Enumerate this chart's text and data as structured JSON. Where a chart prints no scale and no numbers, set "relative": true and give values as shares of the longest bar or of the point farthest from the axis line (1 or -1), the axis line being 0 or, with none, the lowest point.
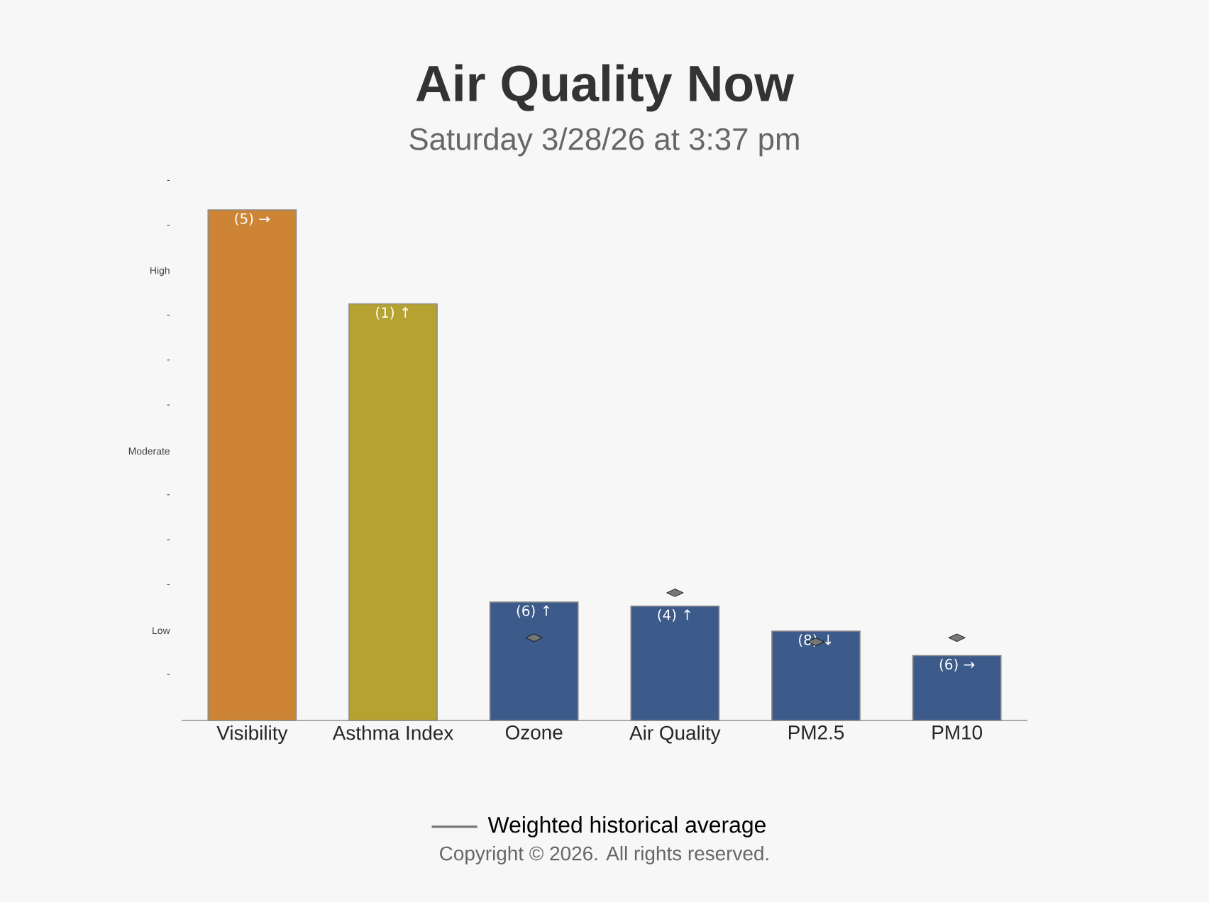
{
  "chart_data": {
    "type": "bar",
    "title": "Air Quality Now",
    "subtitle": "Saturday 3/28/26 at 3:37 pm",
    "categories": [
      "Visibility",
      "Asthma Index",
      "Ozone",
      "Air Quality",
      "PM2.5",
      "PM10"
    ],
    "relative": true,
    "series": [
      {
        "colors": [
          "#cd8535",
          "#b5a230",
          "#3c5a8a",
          "#3c5a8a",
          "#3c5a8a",
          "#3c5a8a"
        ],
        "values": [
          1,
          0.816,
          0.232,
          0.224,
          0.175,
          0.127
        ]
      },
      {
        "type": "scatter",
        "name": "Weighted historical average",
        "color": "#777777",
        "marker": "diamond",
        "values": [
          null,
          null,
          0.162,
          0.25,
          0.154,
          0.162
        ]
      }
    ],
    "legend": "bottom",
    "annotations": [
      {
        "text": "(5) →",
        "x": "Visibility",
        "y": 1
      },
      {
        "text": "(1) ↑",
        "x": "Asthma Index",
        "y": 0.816
      },
      {
        "text": "(6) ↑",
        "x": "Ozone",
        "y": 0.232
      },
      {
        "text": "(4) ↑",
        "x": "Air Quality",
        "y": 0.224
      },
      {
        "text": "(8) ↓",
        "x": "PM2.5",
        "y": 0.175
      },
      {
        "text": "(6) →",
        "x": "PM10",
        "y": 0.127
      },
      "-",
      "Low",
      "-",
      "-",
      "-",
      "Moderate",
      "-",
      "-",
      "-",
      "High",
      "-",
      "-",
      "Copyright © 2026.  All rights reserved."
    ]
  }
}
